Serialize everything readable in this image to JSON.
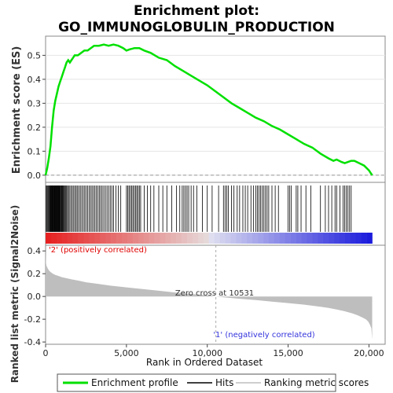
{
  "chart_data": {
    "type": "line",
    "title_line1": "Enrichment plot:",
    "title_line2": "GO_IMMUNOGLOBULIN_PRODUCTION",
    "es_panel": {
      "ylabel": "Enrichment score (ES)",
      "ylim": [
        -0.03,
        0.58
      ],
      "yticks": [
        "0.0",
        "0.1",
        "0.2",
        "0.3",
        "0.4",
        "0.5"
      ],
      "ytick_values": [
        0.0,
        0.1,
        0.2,
        0.3,
        0.4,
        0.5
      ],
      "color": "#00e000",
      "x": [
        0,
        100,
        200,
        300,
        400,
        500,
        600,
        700,
        800,
        900,
        1000,
        1100,
        1200,
        1300,
        1400,
        1500,
        1600,
        1700,
        1800,
        2000,
        2200,
        2400,
        2600,
        2800,
        3000,
        3300,
        3600,
        3900,
        4200,
        4500,
        4800,
        5000,
        5200,
        5500,
        5800,
        6100,
        6500,
        7000,
        7500,
        8000,
        8500,
        9000,
        9500,
        10000,
        10500,
        11000,
        11500,
        12000,
        12500,
        13000,
        13500,
        14000,
        14500,
        15000,
        15500,
        16000,
        16500,
        17000,
        17500,
        17800,
        18000,
        18300,
        18500,
        18700,
        18900,
        19100,
        19400,
        19700,
        20000,
        20200
      ],
      "y": [
        0.0,
        0.03,
        0.07,
        0.12,
        0.2,
        0.27,
        0.31,
        0.34,
        0.37,
        0.39,
        0.41,
        0.43,
        0.45,
        0.47,
        0.48,
        0.47,
        0.48,
        0.49,
        0.5,
        0.5,
        0.51,
        0.52,
        0.52,
        0.53,
        0.54,
        0.54,
        0.545,
        0.54,
        0.545,
        0.54,
        0.53,
        0.52,
        0.525,
        0.53,
        0.53,
        0.52,
        0.51,
        0.49,
        0.48,
        0.455,
        0.435,
        0.415,
        0.395,
        0.375,
        0.35,
        0.325,
        0.3,
        0.28,
        0.26,
        0.24,
        0.225,
        0.205,
        0.19,
        0.17,
        0.15,
        0.13,
        0.115,
        0.09,
        0.07,
        0.06,
        0.065,
        0.055,
        0.05,
        0.055,
        0.06,
        0.06,
        0.05,
        0.04,
        0.02,
        0.0
      ]
    },
    "hits": [
      40,
      90,
      140,
      190,
      230,
      270,
      300,
      330,
      360,
      390,
      420,
      450,
      480,
      510,
      540,
      570,
      600,
      630,
      660,
      690,
      720,
      750,
      780,
      810,
      840,
      870,
      900,
      940,
      980,
      1020,
      1060,
      1100,
      1150,
      1200,
      1250,
      1300,
      1360,
      1420,
      1500,
      1580,
      1660,
      1740,
      1820,
      1900,
      1980,
      2060,
      2150,
      2240,
      2330,
      2420,
      2510,
      2600,
      2690,
      2780,
      2870,
      2960,
      3050,
      3140,
      3230,
      3320,
      3410,
      3500,
      3600,
      3700,
      3800,
      3900,
      4000,
      4100,
      4200,
      4350,
      4500,
      4650,
      5000,
      5080,
      5160,
      5240,
      5320,
      5400,
      5480,
      5560,
      5640,
      5720,
      5800,
      5880,
      6100,
      6300,
      6500,
      6700,
      7000,
      7250,
      7500,
      7800,
      8100,
      8300,
      8450,
      8550,
      8650,
      8750,
      8850,
      9000,
      9150,
      9350,
      9700,
      10000,
      10300,
      10700,
      11000,
      11100,
      11200,
      11300,
      11500,
      11650,
      11850,
      12000,
      12200,
      12350,
      12500,
      12700,
      12850,
      13000,
      13100,
      13200,
      13300,
      13400,
      13500,
      13600,
      13700,
      13800,
      14000,
      14200,
      14400,
      15000,
      15100,
      15200,
      15500,
      15600,
      15800,
      16100,
      16400,
      17000,
      17300,
      17500,
      17700,
      17900,
      18000,
      18200,
      18400,
      18500,
      18600,
      18700,
      18800,
      18900
    ],
    "ranked_panel": {
      "ylabel": "Ranked list metric (Signal2Noise)",
      "ylim": [
        -0.42,
        0.45
      ],
      "yticks": [
        "0.4",
        "0.2",
        "0.0",
        "-0.2",
        "-0.4"
      ],
      "ytick_values": [
        0.4,
        0.2,
        0.0,
        -0.2,
        -0.4
      ],
      "color": "#bebebe",
      "x": [
        0,
        20,
        60,
        120,
        200,
        300,
        450,
        600,
        800,
        1000,
        1300,
        1600,
        2000,
        2500,
        3000,
        4000,
        5000,
        6000,
        7000,
        8000,
        9000,
        10000,
        10531,
        11000,
        12000,
        13000,
        14000,
        15000,
        16000,
        17000,
        17500,
        18000,
        18500,
        19000,
        19300,
        19600,
        19800,
        19950,
        20050,
        20150,
        20200
      ],
      "y": [
        0.41,
        0.3,
        0.27,
        0.25,
        0.23,
        0.215,
        0.2,
        0.19,
        0.18,
        0.17,
        0.16,
        0.15,
        0.14,
        0.125,
        0.115,
        0.095,
        0.08,
        0.065,
        0.05,
        0.035,
        0.022,
        0.01,
        0.0,
        -0.008,
        -0.02,
        -0.032,
        -0.045,
        -0.058,
        -0.072,
        -0.09,
        -0.1,
        -0.115,
        -0.13,
        -0.15,
        -0.165,
        -0.185,
        -0.2,
        -0.22,
        -0.245,
        -0.28,
        -0.38
      ],
      "zero_cross_label": "Zero cross at 10531",
      "zero_cross_x": 10531,
      "pos_label": "'2' (positively correlated)",
      "neg_label": "'1' (negatively correlated)",
      "pos_color": "#e00000",
      "neg_color": "#3333dd"
    },
    "xlabel": "Rank in Ordered Dataset",
    "xlim": [
      0,
      21000
    ],
    "xticks": [
      "0",
      "5,000",
      "10,000",
      "15,000",
      "20,000"
    ],
    "xtick_values": [
      0,
      5000,
      10000,
      15000,
      20000
    ],
    "n_genes": 20200,
    "legend": [
      {
        "label": "Enrichment profile",
        "color": "#00e000"
      },
      {
        "label": "Hits",
        "color": "#000000"
      },
      {
        "label": "Ranking metric scores",
        "color": "#bebebe"
      }
    ]
  }
}
